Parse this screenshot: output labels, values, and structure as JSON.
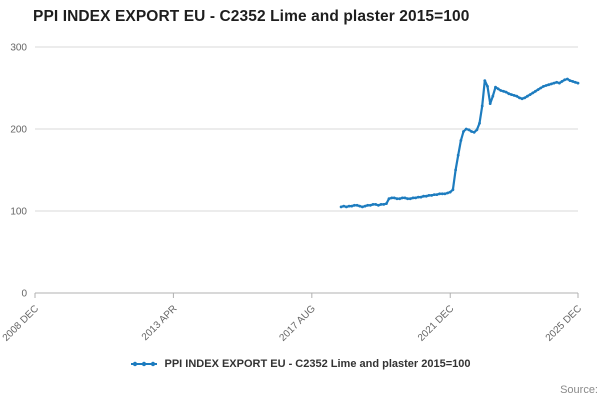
{
  "title": "PPI INDEX EXPORT EU - C2352 Lime and plaster 2015=100",
  "legend": {
    "label": "PPI INDEX EXPORT EU - C2352 Lime and plaster 2015=100"
  },
  "source": {
    "label": "Source:"
  },
  "chart_data": {
    "type": "line",
    "title": "PPI INDEX EXPORT EU - C2352 Lime and plaster 2015=100",
    "xlabel": "",
    "ylabel": "",
    "grid": "horizontal",
    "legend_position": "bottom-center",
    "line_color": "#1d7cbf",
    "grid_color": "#d9d9d9",
    "axis_color": "#b0b0b0",
    "tick_label_color": "#666666",
    "y_axis": {
      "ticks": [
        0,
        100,
        200,
        300
      ],
      "ylim": [
        0,
        300
      ]
    },
    "x_axis": {
      "start": "2008-12",
      "total_months": 204,
      "ticks": [
        {
          "label": "2008 DEC",
          "month": 0
        },
        {
          "label": "2013 APR",
          "month": 52
        },
        {
          "label": "2017 AUG",
          "month": 104
        },
        {
          "label": "2021 DEC",
          "month": 156
        },
        {
          "label": "2025 DEC",
          "month": 204
        }
      ]
    },
    "series": [
      {
        "name": "PPI INDEX EXPORT EU - C2352 Lime and plaster 2015=100",
        "frequency": "monthly",
        "start": "2018-07",
        "start_month_offset": 115,
        "values": [
          105,
          106,
          105,
          106,
          106,
          107,
          107,
          106,
          105,
          106,
          107,
          107,
          108,
          108,
          107,
          108,
          108,
          109,
          115,
          116,
          116,
          115,
          115,
          116,
          116,
          115,
          115,
          116,
          116,
          117,
          117,
          118,
          118,
          119,
          119,
          120,
          120,
          121,
          121,
          121,
          122,
          123,
          126,
          150,
          168,
          186,
          197,
          200,
          199,
          197,
          196,
          199,
          207,
          228,
          259,
          252,
          231,
          240,
          251,
          249,
          247,
          246,
          245,
          243,
          242,
          241,
          240,
          238,
          237,
          238,
          240,
          242,
          244,
          246,
          248,
          250,
          252,
          253,
          254,
          255,
          256,
          257,
          256,
          258,
          260,
          261,
          259,
          258,
          257,
          256
        ]
      }
    ]
  }
}
